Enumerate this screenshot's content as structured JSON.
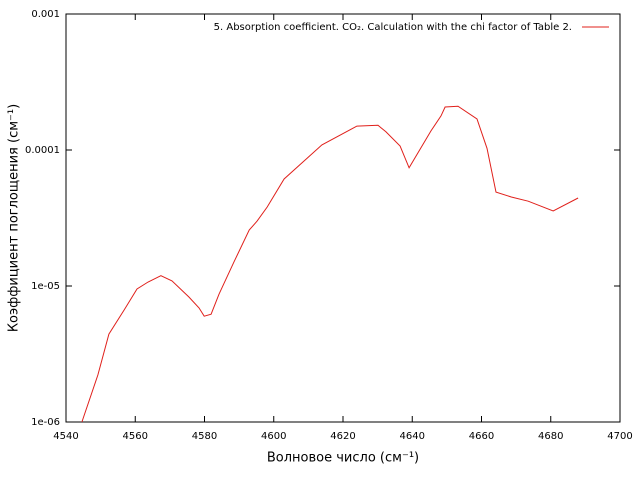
{
  "chart_data": {
    "type": "line",
    "xlabel": "Волновое число (см⁻¹)",
    "ylabel": "Коэффициент поглощения (см⁻¹)",
    "xlim": [
      4540,
      4700
    ],
    "xticks": [
      4540,
      4560,
      4580,
      4600,
      4620,
      4640,
      4660,
      4680,
      4700
    ],
    "ylim": [
      1e-06,
      0.001
    ],
    "yticks": [
      {
        "value": 1e-06,
        "label": "1e-06"
      },
      {
        "value": 1e-05,
        "label": "1e-05"
      },
      0.0001,
      0.001
    ],
    "logscale_y": true,
    "legend_position": "top right",
    "series": [
      {
        "name": "5. Absorption coefficient. CO₂. Calculation with the chi factor of Table 2.",
        "color": "#e0201b",
        "x": [
          4544.6,
          4549.2,
          4552.4,
          4556.8,
          4560.5,
          4563.7,
          4567.4,
          4570.6,
          4575.5,
          4578.4,
          4579.9,
          4581.9,
          4584.2,
          4588.5,
          4592.9,
          4595.2,
          4598.1,
          4603.0,
          4613.9,
          4624.0,
          4630.1,
          4632.4,
          4636.5,
          4639.1,
          4645.4,
          4648.3,
          4649.5,
          4653.2,
          4658.7,
          4661.6,
          4664.2,
          4668.6,
          4673.5,
          4680.7,
          4687.9
        ],
        "values": [
          1e-06,
          2.22e-06,
          4.43e-06,
          6.67e-06,
          9.5e-06,
          1.07e-05,
          1.19e-05,
          1.09e-05,
          8.3e-06,
          6.9e-06,
          6e-06,
          6.2e-06,
          8.7e-06,
          1.5e-05,
          2.58e-05,
          3e-05,
          3.81e-05,
          6.12e-05,
          0.000109,
          0.00015,
          0.000152,
          0.000136,
          0.000107,
          7.4e-05,
          0.000138,
          0.000178,
          0.000207,
          0.00021,
          0.000169,
          0.000103,
          4.9e-05,
          4.51e-05,
          4.2e-05,
          3.56e-05,
          4.44e-05
        ]
      }
    ]
  }
}
